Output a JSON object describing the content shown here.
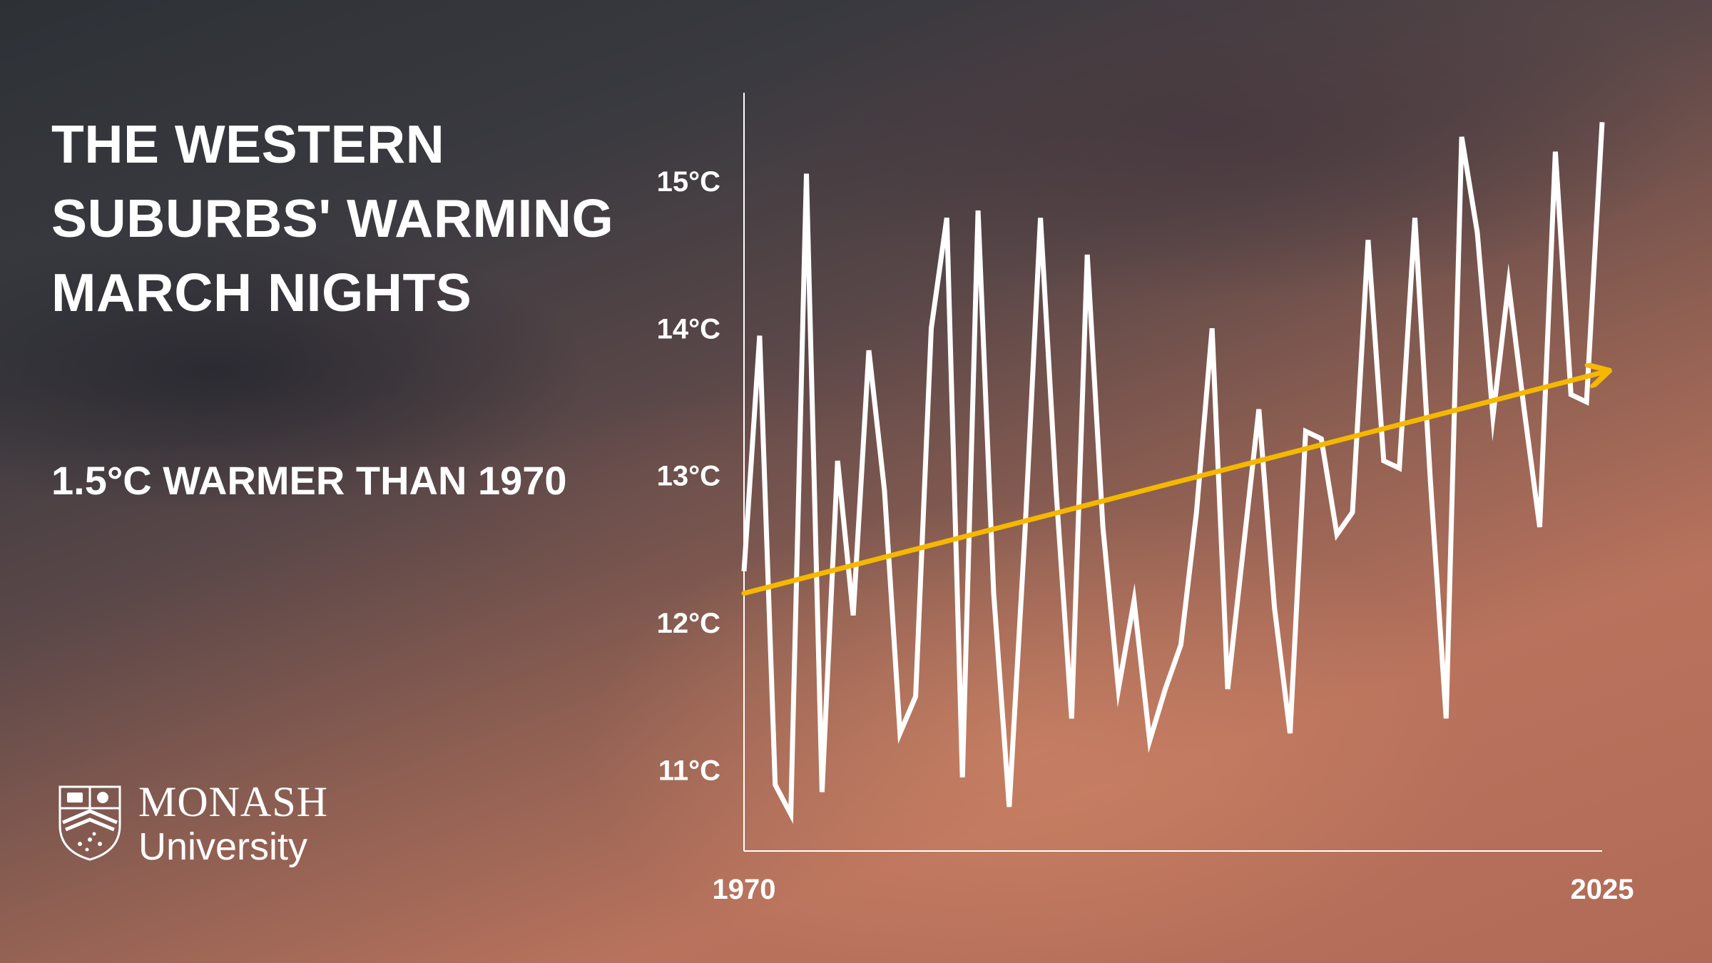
{
  "title_lines": [
    "THE WESTERN",
    "SUBURBS' WARMING",
    "MARCH NIGHTS"
  ],
  "subtitle": "1.5°C WARMER THAN 1970",
  "logo": {
    "name": "MONASH",
    "sub": "University",
    "crest_icon": "monash-crest-icon"
  },
  "colors": {
    "line": "#ffffff",
    "trend": "#f5b800",
    "axis": "#ffffff"
  },
  "chart_data": {
    "type": "line",
    "title": "THE WESTERN SUBURBS' WARMING MARCH NIGHTS",
    "xlabel": "",
    "ylabel": "",
    "xlim": [
      1970,
      2025
    ],
    "ylim": [
      10.45,
      15.6
    ],
    "x_tick_labels": [
      {
        "value": 1970,
        "label": "1970"
      },
      {
        "value": 2025,
        "label": "2025"
      }
    ],
    "y_tick_labels": [
      {
        "value": 11,
        "label": "11°C"
      },
      {
        "value": 12,
        "label": "12°C"
      },
      {
        "value": 13,
        "label": "13°C"
      },
      {
        "value": 14,
        "label": "14°C"
      },
      {
        "value": 15,
        "label": "15°C"
      }
    ],
    "grid": false,
    "series": [
      {
        "x": [
          1970,
          1971,
          1972,
          1973,
          1974,
          1975,
          1976,
          1977,
          1978,
          1979,
          1980,
          1981,
          1982,
          1983,
          1984,
          1985,
          1986,
          1987,
          1988,
          1989,
          1990,
          1991,
          1992,
          1993,
          1994,
          1995,
          1996,
          1997,
          1998,
          1999,
          2000,
          2001,
          2002,
          2003,
          2004,
          2005,
          2006,
          2007,
          2008,
          2009,
          2010,
          2011,
          2012,
          2013,
          2014,
          2015,
          2016,
          2017,
          2018,
          2019,
          2020,
          2021,
          2022,
          2023,
          2024,
          2025
        ],
        "y": [
          12.35,
          13.95,
          10.9,
          10.7,
          15.05,
          10.85,
          13.1,
          12.05,
          13.85,
          12.9,
          11.25,
          11.5,
          14.0,
          14.75,
          10.95,
          14.8,
          12.2,
          10.75,
          12.6,
          14.75,
          12.9,
          11.35,
          14.5,
          12.65,
          11.55,
          12.15,
          11.2,
          11.55,
          11.85,
          12.75,
          14.0,
          11.55,
          12.5,
          13.45,
          12.1,
          11.25,
          13.3,
          13.25,
          12.6,
          12.75,
          14.6,
          13.1,
          13.05,
          14.75,
          12.95,
          11.35,
          15.3,
          14.65,
          13.4,
          14.3,
          13.45,
          12.65,
          15.2,
          13.55,
          13.5,
          15.4
        ]
      }
    ],
    "trend": {
      "x": [
        1970,
        2025
      ],
      "y": [
        12.2,
        13.7
      ],
      "direction": "up-arrow"
    }
  }
}
